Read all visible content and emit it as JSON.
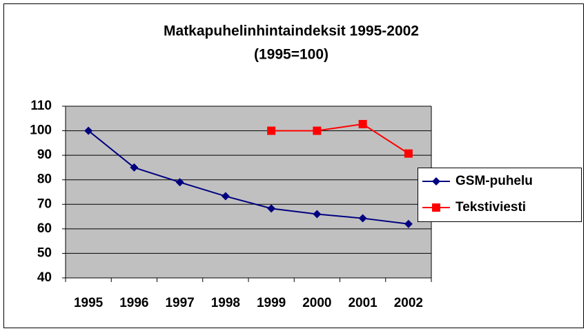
{
  "chart_data": {
    "type": "line",
    "title": "Matkapuhelinhintaindeksit 1995-2002",
    "subtitle": "(1995=100)",
    "categories": [
      "1995",
      "1996",
      "1997",
      "1998",
      "1999",
      "2000",
      "2001",
      "2002"
    ],
    "series": [
      {
        "name": "GSM-puhelu",
        "color": "#000080",
        "marker": "diamond",
        "values": [
          100,
          85,
          79,
          73.3,
          68.3,
          66,
          64.3,
          62
        ]
      },
      {
        "name": "Tekstiviesti",
        "color": "#ff0000",
        "marker": "square",
        "values": [
          null,
          null,
          null,
          null,
          100,
          100,
          102.7,
          90.7
        ]
      }
    ],
    "ylim": [
      40,
      110
    ],
    "yticks": [
      40,
      50,
      60,
      70,
      80,
      90,
      100,
      110
    ],
    "grid": true,
    "legend": "right"
  }
}
